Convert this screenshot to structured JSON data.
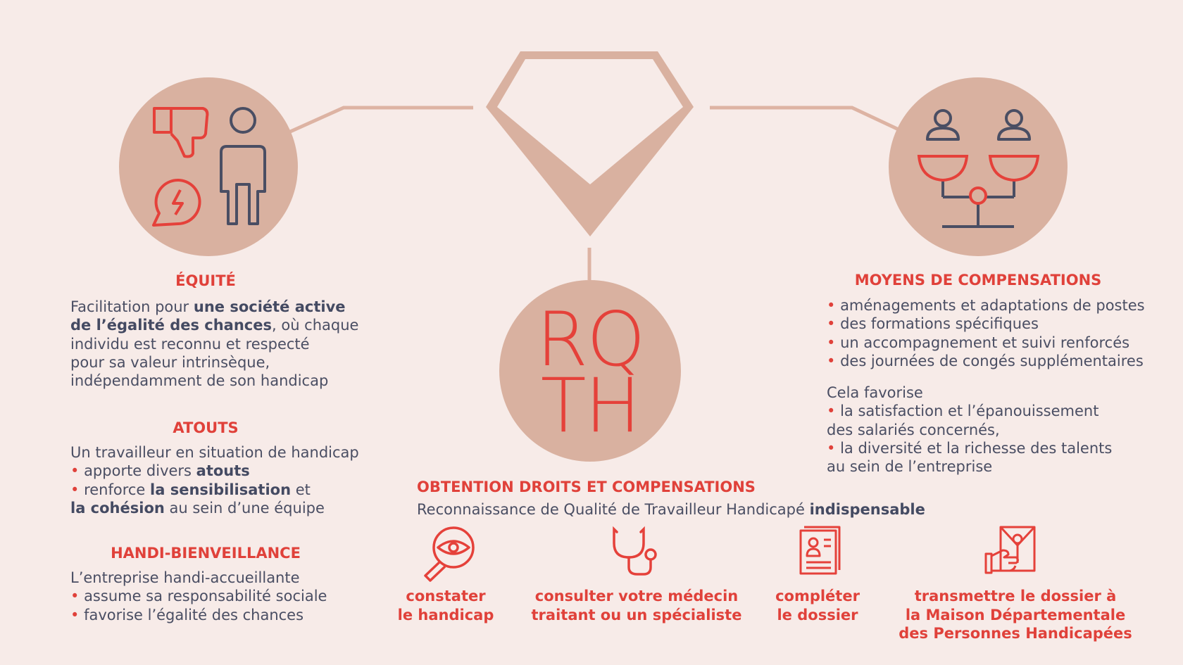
{
  "colors": {
    "background": "#f7ebe8",
    "accent": "#e0413a",
    "circle": "#d9b1a0",
    "text": "#4a4e63"
  },
  "center": {
    "rqth_line1": "RQ",
    "rqth_line2": "TH",
    "icon": "diamond-icon"
  },
  "equite": {
    "title": "ÉQUITÉ",
    "icons": [
      "thumbs-down-icon",
      "person-icon",
      "alert-speech-icon"
    ],
    "p1": "Facilitation pour ",
    "b1": "une société active",
    "b2": "de l’égalité des chances",
    "p2": ", où chaque",
    "l3": "individu est reconnu et respecté",
    "l4": "pour sa valeur intrinsèque,",
    "l5": "indépendamment de son handicap"
  },
  "atouts": {
    "title": "ATOUTS",
    "intro": "Un travailleur en situation de handicap",
    "bullet": "•",
    "i1a": " apporte divers ",
    "i1b": "atouts",
    "i2a": " renforce ",
    "i2b": "la sensibilisation",
    "i2c": " et",
    "i3a": "la cohésion",
    "i3b": " au sein d’une équipe"
  },
  "handi": {
    "title": "HANDI-BIENVEILLANCE",
    "intro": "L’entreprise handi-accueillante",
    "items": [
      " assume sa responsabilité sociale",
      " favorise l’égalité des chances"
    ]
  },
  "moyens": {
    "title": "MOYENS DE COMPENSATIONS",
    "icon": "balance-people-icon",
    "items": [
      " aménagements et adaptations de postes",
      " des formations spécifiques",
      " un accompagnement et suivi renforcés",
      " des journées de congés supplémentaires"
    ],
    "favorise": "Cela favorise",
    "f1a": " la satisfaction et l’épanouissement",
    "f1b": "des salariés concernés,",
    "f2a": " la diversité et la richesse des talents",
    "f2b": "au sein de l’entreprise"
  },
  "obtention": {
    "title": "OBTENTION DROITS ET COMPENSATIONS",
    "subtitle": "Reconnaissance de Qualité de Travailleur Handicapé ",
    "subtitle_bold": "indispensable",
    "steps": [
      {
        "icon": "magnifier-eye-icon",
        "l1": "constater",
        "l2": "le handicap"
      },
      {
        "icon": "stethoscope-icon",
        "l1": "consulter votre médecin",
        "l2": "traitant ou un spécialiste"
      },
      {
        "icon": "document-form-icon",
        "l1": "compléter",
        "l2": "le dossier"
      },
      {
        "icon": "envelope-hand-icon",
        "l1": "transmettre le dossier à",
        "l2": "la Maison Départementale",
        "l3": "des Personnes Handicapées"
      }
    ]
  }
}
